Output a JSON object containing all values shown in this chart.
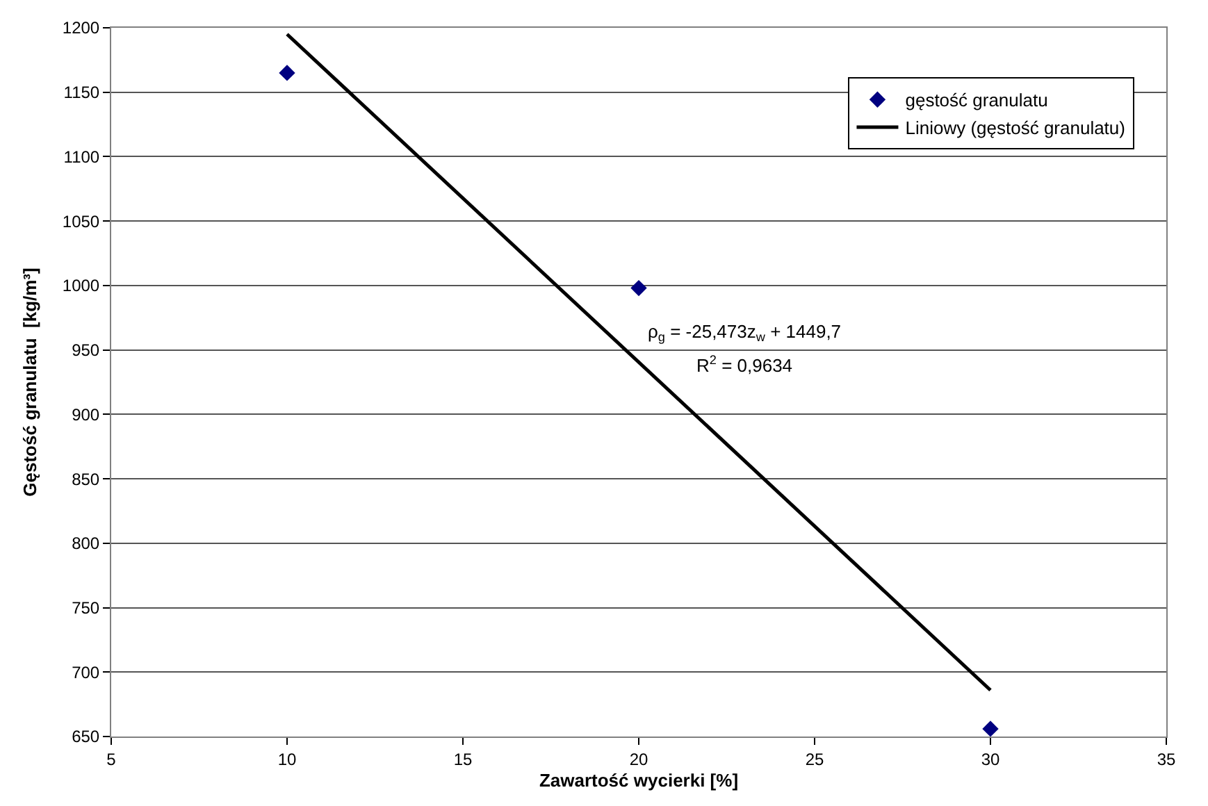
{
  "chart_data": {
    "type": "scatter",
    "xlabel": "Zawartość wycierki [%]",
    "ylabel": "Gęstość granulatu  [kg/m³]",
    "series": [
      {
        "name": "gęstość granulatu",
        "color": "#000080",
        "marker": "diamond",
        "x": [
          10,
          20,
          30
        ],
        "values": [
          1165,
          998,
          656
        ]
      },
      {
        "name": "Liniowy (gęstość granulatu)",
        "type": "line",
        "color": "#000000",
        "marker": "none",
        "line_style": "solid",
        "x": [
          10,
          30
        ],
        "values": [
          1195,
          686
        ]
      }
    ],
    "annotations": [
      "ρ$_{g}$ = -25,473z$_{w}$ + 1449,7",
      "R$^{2}$ = 0,9634"
    ],
    "xlim": [
      5,
      35
    ],
    "xticks": [
      5,
      10,
      15,
      20,
      25,
      30,
      35
    ],
    "ylim": [
      650,
      1200
    ],
    "yticks": [
      650,
      700,
      750,
      800,
      850,
      900,
      950,
      1000,
      1050,
      1100,
      1150,
      1200
    ],
    "grid": "y",
    "legend": "top right"
  }
}
